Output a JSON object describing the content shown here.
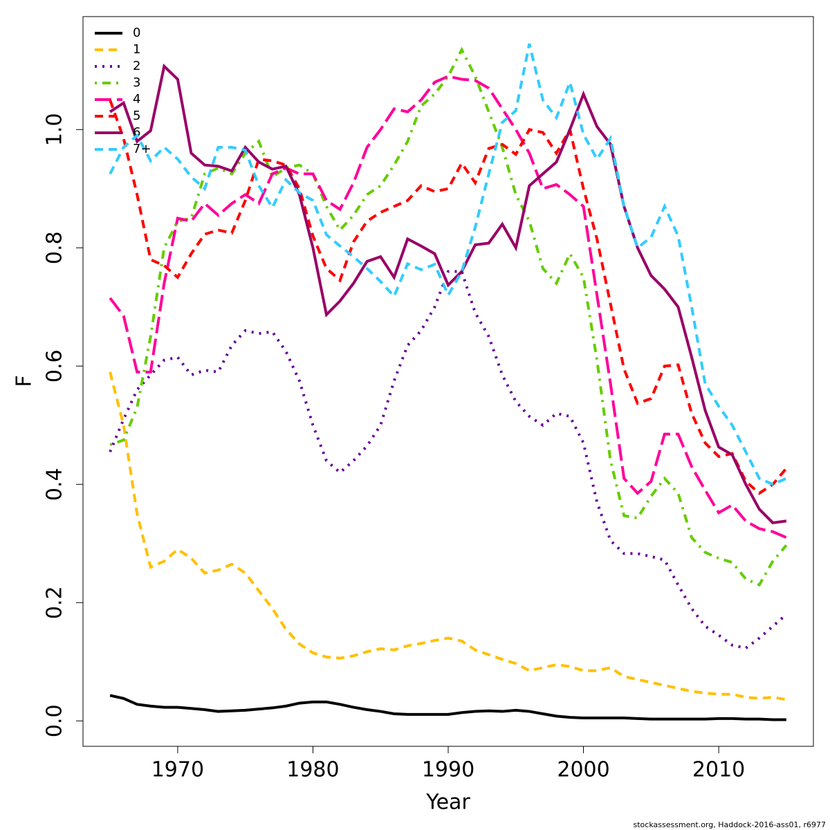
{
  "chart_data": {
    "type": "line",
    "xlabel": "Year",
    "ylabel": "F",
    "footnote": "stockassessment.org, Haddock-2016-ass01, r6977",
    "xlim": [
      1963,
      2017
    ],
    "ylim": [
      -0.043,
      1.191
    ],
    "xticks": [
      1970,
      1980,
      1990,
      2000,
      2010
    ],
    "yticks": [
      {
        "value": 0,
        "label": "0.0"
      },
      0.2,
      0.4,
      0.6,
      0.8,
      {
        "value": 1,
        "label": "1.0"
      }
    ],
    "legend": "top-left",
    "x": [
      1965,
      1966,
      1967,
      1968,
      1969,
      1970,
      1971,
      1972,
      1973,
      1974,
      1975,
      1976,
      1977,
      1978,
      1979,
      1980,
      1981,
      1982,
      1983,
      1984,
      1985,
      1986,
      1987,
      1988,
      1989,
      1990,
      1991,
      1992,
      1993,
      1994,
      1995,
      1996,
      1997,
      1998,
      1999,
      2000,
      2001,
      2002,
      2003,
      2004,
      2005,
      2006,
      2007,
      2008,
      2009,
      2010,
      2011,
      2012,
      2013,
      2014,
      2015
    ],
    "series": [
      {
        "name": "0",
        "color": "#000000",
        "linestyle": "solid",
        "values": [
          0.043,
          0.038,
          0.028,
          0.025,
          0.023,
          0.023,
          0.021,
          0.019,
          0.016,
          0.017,
          0.018,
          0.02,
          0.022,
          0.025,
          0.03,
          0.032,
          0.032,
          0.028,
          0.023,
          0.019,
          0.016,
          0.012,
          0.011,
          0.011,
          0.011,
          0.011,
          0.014,
          0.016,
          0.017,
          0.016,
          0.018,
          0.016,
          0.012,
          0.008,
          0.006,
          0.005,
          0.005,
          0.005,
          0.005,
          0.004,
          0.003,
          0.003,
          0.003,
          0.003,
          0.003,
          0.004,
          0.004,
          0.003,
          0.003,
          0.002,
          0.002
        ]
      },
      {
        "name": "1",
        "color": "#ffc000",
        "linestyle": "dashed",
        "values": [
          0.59,
          0.5,
          0.35,
          0.26,
          0.27,
          0.29,
          0.275,
          0.25,
          0.255,
          0.265,
          0.25,
          0.22,
          0.19,
          0.155,
          0.13,
          0.115,
          0.108,
          0.106,
          0.11,
          0.117,
          0.122,
          0.12,
          0.127,
          0.131,
          0.136,
          0.14,
          0.135,
          0.12,
          0.112,
          0.104,
          0.097,
          0.085,
          0.09,
          0.095,
          0.092,
          0.085,
          0.085,
          0.09,
          0.075,
          0.07,
          0.065,
          0.06,
          0.055,
          0.05,
          0.047,
          0.045,
          0.045,
          0.04,
          0.038,
          0.04,
          0.036
        ]
      },
      {
        "name": "2",
        "color": "#660099",
        "linestyle": "dotted",
        "values": [
          0.455,
          0.51,
          0.56,
          0.585,
          0.61,
          0.615,
          0.585,
          0.593,
          0.59,
          0.635,
          0.66,
          0.655,
          0.658,
          0.625,
          0.575,
          0.5,
          0.44,
          0.42,
          0.44,
          0.465,
          0.5,
          0.575,
          0.635,
          0.66,
          0.7,
          0.76,
          0.76,
          0.69,
          0.65,
          0.585,
          0.54,
          0.515,
          0.5,
          0.52,
          0.515,
          0.47,
          0.37,
          0.305,
          0.283,
          0.283,
          0.278,
          0.272,
          0.23,
          0.19,
          0.16,
          0.145,
          0.128,
          0.123,
          0.14,
          0.16,
          0.18
        ]
      },
      {
        "name": "3",
        "color": "#66cc00",
        "linestyle": "dotdash",
        "values": [
          0.467,
          0.475,
          0.53,
          0.65,
          0.8,
          0.845,
          0.85,
          0.925,
          0.935,
          0.925,
          0.96,
          0.98,
          0.92,
          0.935,
          0.94,
          0.925,
          0.87,
          0.83,
          0.855,
          0.89,
          0.905,
          0.94,
          0.98,
          1.04,
          1.06,
          1.09,
          1.135,
          1.09,
          1.03,
          0.97,
          0.89,
          0.845,
          0.765,
          0.74,
          0.79,
          0.75,
          0.61,
          0.44,
          0.347,
          0.343,
          0.38,
          0.41,
          0.385,
          0.31,
          0.285,
          0.275,
          0.268,
          0.24,
          0.23,
          0.27,
          0.297
        ]
      },
      {
        "name": "4",
        "color": "#ff0099",
        "linestyle": "longdash",
        "values": [
          0.715,
          0.685,
          0.59,
          0.59,
          0.74,
          0.85,
          0.845,
          0.875,
          0.855,
          0.875,
          0.89,
          0.875,
          0.925,
          0.935,
          0.925,
          0.925,
          0.88,
          0.865,
          0.91,
          0.97,
          1.0,
          1.035,
          1.03,
          1.05,
          1.08,
          1.09,
          1.085,
          1.083,
          1.07,
          1.035,
          1.0,
          0.96,
          0.9,
          0.907,
          0.89,
          0.87,
          0.72,
          0.57,
          0.41,
          0.385,
          0.405,
          0.485,
          0.485,
          0.43,
          0.39,
          0.352,
          0.365,
          0.338,
          0.325,
          0.32,
          0.31
        ]
      },
      {
        "name": "5",
        "color": "#ff0000",
        "linestyle": "dashed",
        "values": [
          1.05,
          0.985,
          0.89,
          0.78,
          0.77,
          0.75,
          0.79,
          0.823,
          0.83,
          0.825,
          0.88,
          0.95,
          0.947,
          0.94,
          0.9,
          0.82,
          0.765,
          0.745,
          0.81,
          0.845,
          0.86,
          0.87,
          0.88,
          0.905,
          0.895,
          0.9,
          0.943,
          0.91,
          0.968,
          0.975,
          0.958,
          1.0,
          0.995,
          0.96,
          1.0,
          0.9,
          0.815,
          0.705,
          0.595,
          0.537,
          0.545,
          0.6,
          0.602,
          0.52,
          0.47,
          0.447,
          0.452,
          0.405,
          0.385,
          0.4,
          0.427
        ]
      },
      {
        "name": "6",
        "color": "#990066",
        "linestyle": "solid",
        "values": [
          1.03,
          1.045,
          0.98,
          0.998,
          1.107,
          1.085,
          0.96,
          0.94,
          0.938,
          0.93,
          0.97,
          0.945,
          0.933,
          0.938,
          0.89,
          0.8,
          0.687,
          0.71,
          0.74,
          0.777,
          0.785,
          0.75,
          0.815,
          0.803,
          0.79,
          0.737,
          0.76,
          0.805,
          0.808,
          0.84,
          0.8,
          0.905,
          0.925,
          0.945,
          1.0,
          1.06,
          1.005,
          0.975,
          0.87,
          0.8,
          0.753,
          0.73,
          0.7,
          0.615,
          0.525,
          0.463,
          0.45,
          0.4,
          0.358,
          0.335,
          0.338
        ]
      },
      {
        "name": "7+",
        "color": "#33ccff",
        "linestyle": "dashed",
        "values": [
          0.925,
          0.97,
          0.99,
          0.947,
          0.97,
          0.95,
          0.92,
          0.9,
          0.97,
          0.97,
          0.965,
          0.905,
          0.868,
          0.915,
          0.893,
          0.88,
          0.822,
          0.803,
          0.785,
          0.765,
          0.743,
          0.718,
          0.773,
          0.763,
          0.772,
          0.72,
          0.76,
          0.835,
          0.925,
          1.012,
          1.032,
          1.145,
          1.05,
          1.02,
          1.08,
          0.992,
          0.95,
          0.985,
          0.87,
          0.8,
          0.818,
          0.87,
          0.82,
          0.7,
          0.57,
          0.532,
          0.5,
          0.455,
          0.41,
          0.4,
          0.41
        ]
      }
    ]
  }
}
